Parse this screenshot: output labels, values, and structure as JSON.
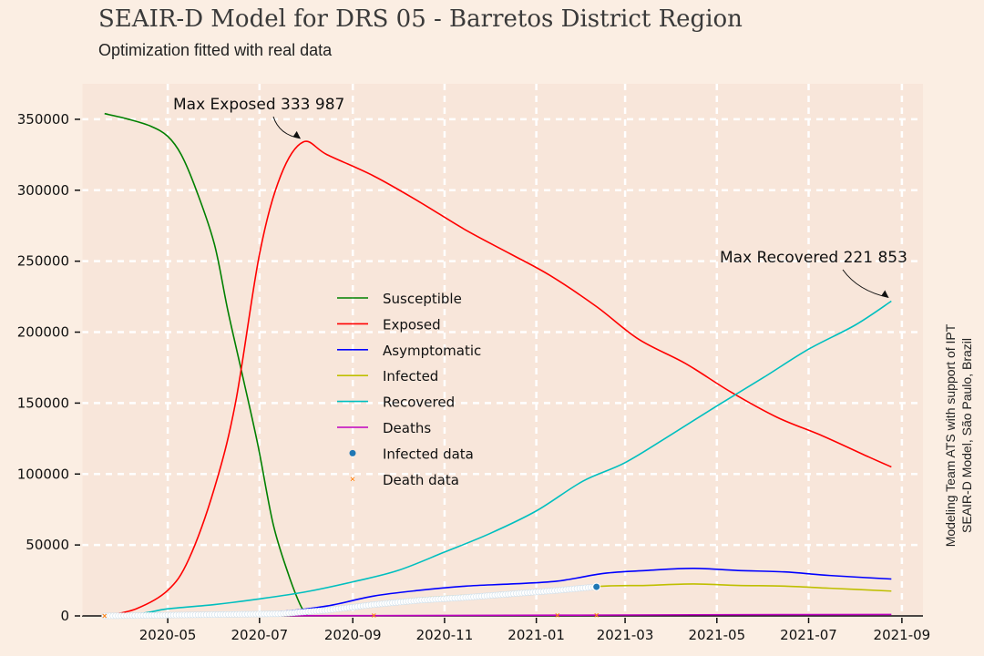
{
  "title": "SEAIR-D Model for DRS 05 - Barretos District Region",
  "subtitle": "Optimization fitted with real data",
  "credit_lines": [
    "Modeling Team ATS with support of IPT",
    "SEAIR-D Model, São Paulo, Brazil"
  ],
  "colors": {
    "background": "#fbeee3",
    "plot_background": "#f8e6da",
    "grid": "#ffffff"
  },
  "chart_data": {
    "type": "line",
    "title": "SEAIR-D Model for DRS 05 - Barretos District Region",
    "subtitle": "Optimization fitted with real data",
    "xlabel": "",
    "ylabel": "",
    "x_range": [
      "2020-03-05",
      "2021-09-15"
    ],
    "ylim": [
      0,
      375000
    ],
    "grid": true,
    "legend_position": "center",
    "x_ticks": [
      "2020-05",
      "2020-07",
      "2020-09",
      "2020-11",
      "2021-01",
      "2021-03",
      "2021-05",
      "2021-07",
      "2021-09"
    ],
    "y_ticks": [
      0,
      50000,
      100000,
      150000,
      200000,
      250000,
      300000,
      350000
    ],
    "series": [
      {
        "name": "Susceptible",
        "color": "#008000",
        "points": [
          [
            "2020-03-20",
            354000
          ],
          [
            "2020-04-05",
            350000
          ],
          [
            "2020-04-20",
            345000
          ],
          [
            "2020-05-01",
            338000
          ],
          [
            "2020-05-10",
            325000
          ],
          [
            "2020-05-20",
            300000
          ],
          [
            "2020-06-01",
            262000
          ],
          [
            "2020-06-10",
            215000
          ],
          [
            "2020-06-20",
            168000
          ],
          [
            "2020-06-30",
            120000
          ],
          [
            "2020-07-10",
            65000
          ],
          [
            "2020-07-20",
            30000
          ],
          [
            "2020-07-28",
            8000
          ],
          [
            "2020-08-02",
            0
          ]
        ]
      },
      {
        "name": "Exposed",
        "color": "#ff0000",
        "points": [
          [
            "2020-03-20",
            0
          ],
          [
            "2020-04-10",
            5000
          ],
          [
            "2020-05-01",
            18000
          ],
          [
            "2020-05-15",
            40000
          ],
          [
            "2020-06-01",
            90000
          ],
          [
            "2020-06-15",
            150000
          ],
          [
            "2020-07-01",
            255000
          ],
          [
            "2020-07-15",
            310000
          ],
          [
            "2020-07-30",
            333987
          ],
          [
            "2020-08-15",
            325000
          ],
          [
            "2020-09-15",
            310000
          ],
          [
            "2020-10-15",
            292000
          ],
          [
            "2020-11-15",
            272000
          ],
          [
            "2020-12-15",
            255000
          ],
          [
            "2021-01-10",
            240000
          ],
          [
            "2021-02-10",
            218000
          ],
          [
            "2021-03-10",
            195000
          ],
          [
            "2021-04-10",
            178000
          ],
          [
            "2021-05-10",
            158000
          ],
          [
            "2021-06-10",
            140000
          ],
          [
            "2021-07-10",
            127000
          ],
          [
            "2021-08-10",
            112000
          ],
          [
            "2021-08-25",
            105000
          ]
        ]
      },
      {
        "name": "Asymptomatic",
        "color": "#0000ff",
        "points": [
          [
            "2020-03-20",
            0
          ],
          [
            "2020-06-01",
            500
          ],
          [
            "2020-07-15",
            3000
          ],
          [
            "2020-08-15",
            7000
          ],
          [
            "2020-09-15",
            14000
          ],
          [
            "2020-10-15",
            18000
          ],
          [
            "2020-11-15",
            21000
          ],
          [
            "2020-12-15",
            22500
          ],
          [
            "2021-01-15",
            24500
          ],
          [
            "2021-02-15",
            30000
          ],
          [
            "2021-03-15",
            32000
          ],
          [
            "2021-04-15",
            33500
          ],
          [
            "2021-05-15",
            32000
          ],
          [
            "2021-06-15",
            31000
          ],
          [
            "2021-07-15",
            28500
          ],
          [
            "2021-08-25",
            26000
          ]
        ]
      },
      {
        "name": "Infected",
        "color": "#bfbf00",
        "points": [
          [
            "2020-03-20",
            0
          ],
          [
            "2020-06-01",
            300
          ],
          [
            "2020-07-15",
            2000
          ],
          [
            "2020-08-15",
            5000
          ],
          [
            "2020-09-15",
            9000
          ],
          [
            "2020-10-15",
            12500
          ],
          [
            "2020-11-15",
            14500
          ],
          [
            "2020-12-15",
            16500
          ],
          [
            "2021-01-15",
            18500
          ],
          [
            "2021-02-15",
            21000
          ],
          [
            "2021-03-15",
            21500
          ],
          [
            "2021-04-15",
            22500
          ],
          [
            "2021-05-15",
            21500
          ],
          [
            "2021-06-15",
            21000
          ],
          [
            "2021-07-15",
            19500
          ],
          [
            "2021-08-25",
            17500
          ]
        ]
      },
      {
        "name": "Recovered",
        "color": "#00bfbf",
        "points": [
          [
            "2020-03-20",
            0
          ],
          [
            "2020-04-15",
            2000
          ],
          [
            "2020-05-01",
            5000
          ],
          [
            "2020-06-01",
            8000
          ],
          [
            "2020-07-01",
            12000
          ],
          [
            "2020-08-01",
            17000
          ],
          [
            "2020-09-01",
            24000
          ],
          [
            "2020-10-01",
            32000
          ],
          [
            "2020-11-01",
            45000
          ],
          [
            "2020-12-01",
            58000
          ],
          [
            "2021-01-01",
            74000
          ],
          [
            "2021-02-01",
            95000
          ],
          [
            "2021-03-01",
            108000
          ],
          [
            "2021-04-01",
            128000
          ],
          [
            "2021-05-01",
            148000
          ],
          [
            "2021-06-01",
            168000
          ],
          [
            "2021-07-01",
            188000
          ],
          [
            "2021-08-01",
            205000
          ],
          [
            "2021-08-25",
            221853
          ]
        ]
      },
      {
        "name": "Deaths",
        "color": "#bf00bf",
        "points": [
          [
            "2020-03-20",
            0
          ],
          [
            "2020-09-15",
            200
          ],
          [
            "2021-01-15",
            500
          ],
          [
            "2021-04-15",
            800
          ],
          [
            "2021-08-25",
            1000
          ]
        ]
      },
      {
        "name": "Infected data",
        "color": "#1f77b4",
        "marker": "dot",
        "points": [
          [
            "2020-03-20",
            0
          ],
          [
            "2020-07-15",
            1500
          ],
          [
            "2020-08-15",
            4000
          ],
          [
            "2020-09-15",
            8000
          ],
          [
            "2020-10-15",
            11000
          ],
          [
            "2020-11-15",
            13000
          ],
          [
            "2020-12-15",
            15500
          ],
          [
            "2021-01-15",
            18000
          ],
          [
            "2021-02-10",
            20500
          ]
        ]
      },
      {
        "name": "Death data",
        "color": "#ff7f0e",
        "marker": "x",
        "points": [
          [
            "2020-03-20",
            0
          ],
          [
            "2020-09-15",
            300
          ],
          [
            "2021-01-15",
            450
          ],
          [
            "2021-02-10",
            500
          ]
        ]
      }
    ],
    "annotations": [
      {
        "text": "Max Exposed 333 987",
        "x": "2020-07-30",
        "y": 333987
      },
      {
        "text": "Max Recovered 221 853",
        "x": "2021-08-25",
        "y": 221853
      }
    ]
  }
}
